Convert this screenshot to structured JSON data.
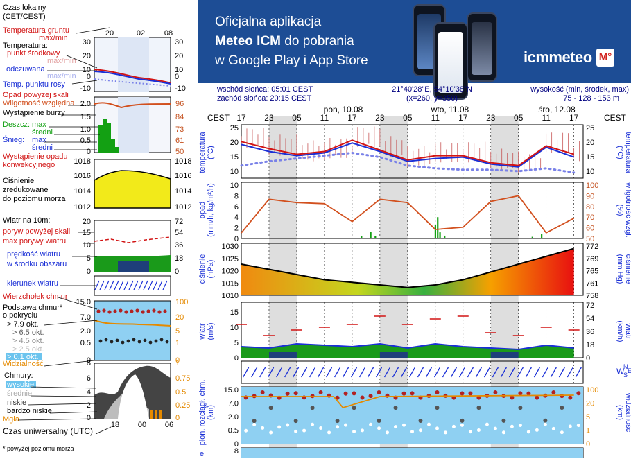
{
  "legend": {
    "tz_title_1": "Czas lokalny",
    "tz_title_2": "(CET/CEST)",
    "tz_ticks": [
      "20",
      "02",
      "08"
    ],
    "temp_ground_1": "Temperatura gruntu",
    "temp_ground_2": "max/min",
    "temp_title": "Temperatura:",
    "temp_mid": "punkt środkowy",
    "temp_maxmin": "max/min",
    "temp_feel": "odczuwana",
    "temp_feel_maxmin": "max/min",
    "temp_dew": "Temp. punktu rosy",
    "temp_left_ticks": [
      "30",
      "20",
      "10",
      "0",
      "-10"
    ],
    "temp_right_ticks": [
      "30",
      "20",
      "10",
      "0",
      "-10"
    ],
    "precip_over": "Opad powyżej skali",
    "humidity": "Wilgotność względna",
    "storm": "Wystąpienie burzy",
    "rain": "Deszcz:",
    "rain_max": "max",
    "rain_mean": "średni",
    "snow": "Śnieg:",
    "snow_max": "max",
    "snow_mean": "średni",
    "conv": "Wystąpienie opadu",
    "conv_2": "konwekcyjnego",
    "precip_left_ticks": [
      "2.0",
      "1.5",
      "1.0",
      "0.5",
      "0"
    ],
    "precip_right_ticks": [
      "96",
      "84",
      "73",
      "61",
      "50"
    ],
    "pressure_1": "Ciśnienie",
    "pressure_2": "zredukowane",
    "pressure_3": "do poziomu morza",
    "pressure_ticks": [
      "1018",
      "1016",
      "1014",
      "1012"
    ],
    "wind_title": "Wiatr na 10m:",
    "gust_over": "poryw powyżej skali",
    "gust_max": "max porywy wiatru",
    "wind_speed": "prędkość wiatru",
    "wind_area": "w środku obszaru",
    "wind_left_ticks": [
      "20",
      "15",
      "10",
      "5",
      "0"
    ],
    "wind_right_ticks": [
      "72",
      "54",
      "36",
      "18",
      "0"
    ],
    "wind_dir": "kierunek wiatru",
    "cloud_top": "Wierzchołek chmur",
    "cloud_base_1": "Podstawa chmur*",
    "cloud_base_2": "o pokryciu",
    "okt": [
      "> 7.9 okt.",
      "> 6.5 okt.",
      "> 4.5 okt.",
      "> 2.5 okt.",
      "> 0.1 okt."
    ],
    "cloud_left_ticks": [
      "15.0",
      "7.0",
      "2.0",
      "0.5",
      "0"
    ],
    "cloud_right_ticks": [
      "100",
      "20",
      "5",
      "1",
      "0"
    ],
    "visibility": "Widzialność",
    "clouds_title": "Chmury:",
    "cl_high": "wysokie",
    "cl_mid": "średnie",
    "cl_low": "niskie",
    "cl_vlow": "bardzo niskie",
    "fog": "Mgła",
    "cl_left_ticks": [
      "8",
      "6",
      "4",
      "2",
      "0"
    ],
    "cl_right_ticks": [
      "1",
      "0.75",
      "0.5",
      "0.25",
      "0"
    ],
    "utc_title": "Czas uniwersalny (UTC)",
    "utc_ticks": [
      "18",
      "00",
      "06"
    ],
    "footnote": "* powyżej poziomu morza"
  },
  "banner": {
    "line1": "Oficjalna aplikacja",
    "line2_a": "Meteo ICM",
    "line2_b": " do pobrania",
    "line3": "w Google Play i App Store",
    "logo": "icmmeteo",
    "badge": "M°"
  },
  "header": {
    "sunrise": "wschód słońca: 05:01 CEST",
    "sunset": "zachód słońca: 20:15 CEST",
    "coords": "21°40'28\"E, 54°10'38\"N",
    "grid": "(x=260,  y=350)",
    "elev_title": "wysokość (min, środek, max)",
    "elev_vals": "75 - 128 - 153 m"
  },
  "axis": {
    "tz": "CEST",
    "days": [
      "pon, 10.08",
      "wto, 11.08",
      "śro, 12.08"
    ],
    "hours": [
      "17",
      "23",
      "05",
      "11",
      "17",
      "23",
      "05",
      "11",
      "17",
      "23",
      "05",
      "11",
      "17"
    ]
  },
  "panels": {
    "temp_left": "temperatura",
    "temp_left_unit": "(°C)",
    "temp_right": "temperatura",
    "temp_right_unit": "(°C)",
    "temp_ticks": [
      "25",
      "20",
      "15",
      "10"
    ],
    "precip_left": "opad",
    "precip_left_unit": "(mm/h, kg/m²/h)",
    "precip_ticks": [
      "10",
      "8",
      "6",
      "4",
      "2",
      "0"
    ],
    "hum_right": "wilgotność wzgl.",
    "hum_right_unit": "(%)",
    "hum_ticks": [
      "100",
      "90",
      "80",
      "70",
      "60",
      "50"
    ],
    "press_left": "ciśnienie",
    "press_left_unit": "(hPa)",
    "press_ticks": [
      "1030",
      "1025",
      "1020",
      "1015",
      "1010"
    ],
    "press_right": "ciśnienie",
    "press_right_unit": "(mm Hg)",
    "press_right_ticks": [
      "772",
      "769",
      "765",
      "761",
      "758"
    ],
    "wind_left": "wiatr",
    "wind_left_unit": "(m/s)",
    "wind_ticks": [
      "15",
      "10",
      "5",
      "0"
    ],
    "wind_right": "wiatr",
    "wind_right_unit": "(km/h)",
    "wind_right_ticks": [
      "72",
      "54",
      "36",
      "18",
      "0"
    ],
    "dir_label": "W",
    "dir_n": "N",
    "dir_s": "S",
    "dir_e": "E",
    "cloud_left": "pion. rozciągł. chm.",
    "cloud_left_unit": "(km)",
    "cloud_ticks": [
      "15.0",
      "7.0",
      "2.0",
      "0.5",
      "0"
    ],
    "vis_right": "widzialność",
    "vis_right_unit": "(km)",
    "vis_ticks": [
      "100",
      "20",
      "5",
      "1",
      "0"
    ],
    "cover_left": "e",
    "cover_ticks": [
      "8"
    ]
  },
  "colors": {
    "banner": "#1d4d95",
    "night": "#dedede",
    "temp": "#d21414",
    "feel": "#1a2fd6",
    "dew": "#7a82e8",
    "humidity": "#d2501e",
    "rain": "#13a013",
    "wind_fill": "#1a9a1a",
    "gust": "#d21414",
    "cloud_bg": "#8fd0f2",
    "visibility": "#e58a00"
  },
  "chart_data": [
    {
      "type": "line",
      "title": "temperatura",
      "ylabel": "(°C)",
      "ylim": [
        8,
        27
      ],
      "x_hours_from_start": [
        0,
        6,
        12,
        18,
        24,
        30,
        36,
        42,
        48,
        54,
        60,
        66,
        72
      ],
      "series": [
        {
          "values": [
            21.0,
            18.5,
            16.5,
            17.5,
            21.5,
            18.0,
            14.5,
            16.0,
            16.0,
            13.5,
            12.5,
            19.5,
            16.5
          ]
        },
        {
          "values": [
            20.0,
            17.5,
            16.0,
            17.0,
            20.5,
            17.5,
            14.0,
            15.0,
            15.5,
            13.0,
            12.0,
            19.0,
            15.5
          ]
        },
        {
          "values": [
            12.5,
            14.0,
            15.0,
            16.0,
            17.0,
            15.5,
            12.5,
            11.5,
            11.0,
            11.0,
            10.5,
            11.5,
            10.0
          ]
        }
      ]
    },
    {
      "type": "line",
      "title": "opad",
      "ylabel": "(mm/h, kg/m²/h)",
      "ylim": [
        0,
        10
      ],
      "y2label": "(%)",
      "y2lim": [
        50,
        100
      ],
      "x_hours_from_start": [
        0,
        6,
        12,
        18,
        24,
        30,
        36,
        42,
        48,
        54,
        60,
        66,
        72
      ],
      "series": [
        {
          "values": [
            55,
            85,
            82,
            81,
            65,
            85,
            82,
            58,
            60,
            83,
            88,
            55,
            68
          ]
        }
      ],
      "bars": [
        {
          "x": 26,
          "value": 0.4
        },
        {
          "x": 28,
          "value": 1.2
        },
        {
          "x": 29,
          "value": 0.4
        },
        {
          "x": 42,
          "value": 2.4
        },
        {
          "x": 42.5,
          "value": 3.8
        },
        {
          "x": 43,
          "value": 1.1
        },
        {
          "x": 44,
          "value": 0.5
        },
        {
          "x": 63,
          "value": 0.3
        },
        {
          "x": 65,
          "value": 0.8
        }
      ]
    },
    {
      "type": "area",
      "title": "ciśnienie",
      "ylabel": "(hPa)",
      "ylim": [
        1010,
        1030
      ],
      "x_hours_from_start": [
        0,
        6,
        12,
        18,
        24,
        30,
        36,
        42,
        48,
        54,
        60,
        66,
        72
      ],
      "series": [
        {
          "values": [
            1022,
            1020,
            1018,
            1016,
            1015,
            1014,
            1013,
            1014,
            1016,
            1019,
            1022,
            1025,
            1028
          ]
        }
      ]
    },
    {
      "type": "area",
      "title": "wiatr",
      "ylabel": "(m/s)",
      "ylim": [
        0,
        20
      ],
      "x_hours_from_start": [
        0,
        6,
        12,
        18,
        24,
        30,
        36,
        42,
        48,
        54,
        60,
        66,
        72
      ],
      "series": [
        {
          "values": [
            4,
            3.5,
            5,
            4.5,
            4,
            5,
            3.5,
            5,
            4,
            3.5,
            3,
            4.5,
            3.5
          ]
        },
        {
          "values": [
            12,
            8,
            10,
            11,
            12,
            15,
            12,
            14,
            15,
            9,
            8,
            11,
            10
          ]
        }
      ]
    }
  ]
}
